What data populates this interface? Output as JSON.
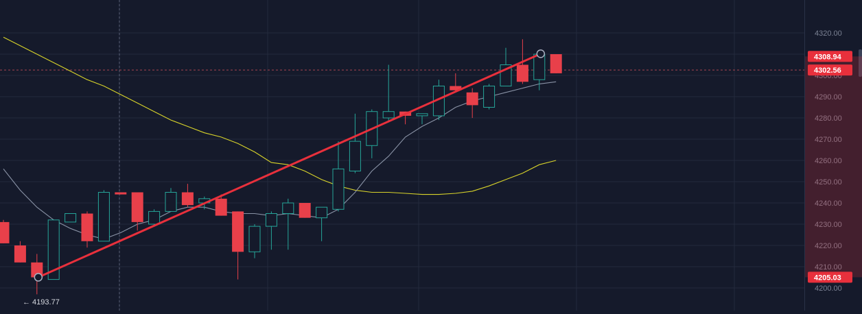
{
  "chart_data": {
    "type": "candlestick",
    "ylim": [
      4197,
      4323
    ],
    "y_ticks": [
      "4200.00",
      "4210.00",
      "4220.00",
      "4230.00",
      "4240.00",
      "4250.00",
      "4260.00",
      "4270.00",
      "4280.00",
      "4290.00",
      "4300.00",
      "4310.00",
      "4320.00"
    ],
    "grid": true,
    "candles": [
      {
        "o": 4231,
        "h": 4232,
        "l": 4221,
        "c": 4221
      },
      {
        "o": 4220,
        "h": 4222,
        "l": 4212,
        "c": 4212
      },
      {
        "o": 4212,
        "h": 4216,
        "l": 4197,
        "c": 4205
      },
      {
        "o": 4204,
        "h": 4232,
        "l": 4204,
        "c": 4232
      },
      {
        "o": 4231,
        "h": 4235,
        "l": 4231,
        "c": 4235
      },
      {
        "o": 4235,
        "h": 4236,
        "l": 4219,
        "c": 4222
      },
      {
        "o": 4222,
        "h": 4246,
        "l": 4222,
        "c": 4245
      },
      {
        "o": 4245,
        "h": 4245,
        "l": 4244,
        "c": 4244
      },
      {
        "o": 4245,
        "h": 4245,
        "l": 4227,
        "c": 4231
      },
      {
        "o": 4230,
        "h": 4237,
        "l": 4229,
        "c": 4236
      },
      {
        "o": 4236,
        "h": 4247,
        "l": 4236,
        "c": 4245
      },
      {
        "o": 4245,
        "h": 4249,
        "l": 4238,
        "c": 4239
      },
      {
        "o": 4240,
        "h": 4243,
        "l": 4237,
        "c": 4242
      },
      {
        "o": 4242,
        "h": 4244,
        "l": 4234,
        "c": 4234
      },
      {
        "o": 4236,
        "h": 4236,
        "l": 4204,
        "c": 4217
      },
      {
        "o": 4217,
        "h": 4230,
        "l": 4214,
        "c": 4229
      },
      {
        "o": 4229,
        "h": 4236,
        "l": 4218,
        "c": 4235
      },
      {
        "o": 4235,
        "h": 4242,
        "l": 4218,
        "c": 4240
      },
      {
        "o": 4240,
        "h": 4240,
        "l": 4233,
        "c": 4233
      },
      {
        "o": 4233,
        "h": 4238,
        "l": 4222,
        "c": 4238
      },
      {
        "o": 4237,
        "h": 4269,
        "l": 4236,
        "c": 4256
      },
      {
        "o": 4255,
        "h": 4282,
        "l": 4254,
        "c": 4269
      },
      {
        "o": 4267,
        "h": 4284,
        "l": 4261,
        "c": 4283
      },
      {
        "o": 4280,
        "h": 4305,
        "l": 4278,
        "c": 4283
      },
      {
        "o": 4283,
        "h": 4283,
        "l": 4277,
        "c": 4281
      },
      {
        "o": 4281,
        "h": 4282,
        "l": 4277,
        "c": 4282
      },
      {
        "o": 4281,
        "h": 4298,
        "l": 4279,
        "c": 4295
      },
      {
        "o": 4295,
        "h": 4301,
        "l": 4292,
        "c": 4293
      },
      {
        "o": 4292,
        "h": 4294,
        "l": 4280,
        "c": 4286
      },
      {
        "o": 4285,
        "h": 4296,
        "l": 4284,
        "c": 4295
      },
      {
        "o": 4295,
        "h": 4313,
        "l": 4295,
        "c": 4305
      },
      {
        "o": 4305,
        "h": 4317,
        "l": 4296,
        "c": 4297
      },
      {
        "o": 4298,
        "h": 4311,
        "l": 4293,
        "c": 4310
      },
      {
        "o": 4310,
        "h": 4310,
        "l": 4301,
        "c": 4301
      }
    ],
    "ma_fast": [
      4256,
      4246,
      4238,
      4232,
      4228,
      4225,
      4223,
      4226,
      4230,
      4232,
      4236,
      4238,
      4238,
      4236,
      4235,
      4235,
      4234,
      4235,
      4234,
      4233,
      4237,
      4245,
      4255,
      4262,
      4271,
      4276,
      4280,
      4285,
      4288,
      4290,
      4292,
      4294,
      4296,
      4297
    ],
    "ma_slow": [
      4318,
      4314,
      4310,
      4306,
      4302,
      4298,
      4295,
      4291,
      4287,
      4283,
      4279,
      4276,
      4273,
      4271,
      4268,
      4264,
      4259,
      4258,
      4255,
      4251,
      4248,
      4246,
      4245,
      4245,
      4244.5,
      4244,
      4244,
      4244.5,
      4245.5,
      4248,
      4251,
      4254,
      4258,
      4260
    ],
    "trendline": {
      "start": 4205.03,
      "end": 4310.2
    },
    "low_marker": "← 4193.77",
    "price_labels": [
      {
        "value": 4308.94,
        "text": "4308.94"
      },
      {
        "value": 4302.56,
        "text": "4302.56"
      },
      {
        "value": 4205.03,
        "text": "4205.03"
      }
    ],
    "crosshair_price": 4302.56,
    "colors": {
      "background": "#151a2b",
      "grid": "#232a3d",
      "up": "#26a69a",
      "down": "#e8404a",
      "ma_fast": "#8a93a6",
      "ma_slow": "#d9d42a",
      "trendline": "#e8303c",
      "axis_text": "#7b8294",
      "axis_bg": "#171c2d",
      "price_tag": "#e8303c"
    }
  }
}
